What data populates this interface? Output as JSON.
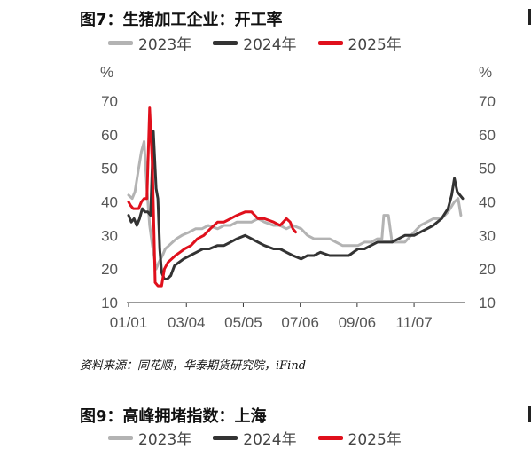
{
  "figure1": {
    "title": "图7：生猪加工企业：开工率",
    "source": "资料来源：同花顺，华泰期货研究院，iFind"
  },
  "figure2": {
    "title": "图9：高峰拥堵指数：上海",
    "legend": [
      "2023年",
      "2024年",
      "2025年"
    ]
  },
  "colors": {
    "s2023": "#b3b3b3",
    "s2024": "#333333",
    "s2025": "#e0101c"
  },
  "chart_data": {
    "type": "line",
    "title": "图7：生猪加工企业：开工率",
    "ylabel_left": "%",
    "ylabel_right": "%",
    "ylim": [
      10,
      70
    ],
    "yticks": [
      10,
      20,
      30,
      40,
      50,
      60,
      70
    ],
    "xlim": [
      "01/01",
      "12/31"
    ],
    "xticks": [
      "01/01",
      "03/04",
      "05/05",
      "07/06",
      "09/06",
      "11/07"
    ],
    "legend_position": "top",
    "grid": false,
    "series": [
      {
        "name": "2023年",
        "x": [
          "01/01",
          "01/05",
          "01/08",
          "01/12",
          "01/15",
          "01/18",
          "01/21",
          "01/24",
          "01/27",
          "01/31",
          "02/03",
          "02/07",
          "02/10",
          "02/14",
          "02/18",
          "02/22",
          "02/28",
          "03/07",
          "03/14",
          "03/21",
          "03/28",
          "04/07",
          "04/14",
          "04/21",
          "04/28",
          "05/07",
          "05/14",
          "05/21",
          "05/28",
          "06/07",
          "06/14",
          "06/21",
          "06/28",
          "07/07",
          "07/14",
          "07/21",
          "07/28",
          "08/07",
          "08/14",
          "08/21",
          "08/28",
          "09/07",
          "09/14",
          "09/21",
          "09/28",
          "10/03",
          "10/05",
          "10/10",
          "10/14",
          "10/21",
          "10/28",
          "11/07",
          "11/14",
          "11/21",
          "11/28",
          "12/07",
          "12/14",
          "12/21",
          "12/25",
          "12/28"
        ],
        "values": [
          42,
          41,
          43,
          50,
          55,
          58,
          44,
          33,
          27,
          20,
          22,
          24,
          26,
          27,
          28,
          29,
          30,
          31,
          32,
          32,
          33,
          32,
          33,
          33,
          34,
          34,
          34,
          35,
          34,
          33,
          33,
          32,
          33,
          32,
          30,
          29,
          29,
          29,
          28,
          27,
          27,
          27,
          28,
          28,
          29,
          29,
          36,
          36,
          28,
          28,
          28,
          31,
          33,
          34,
          35,
          35,
          37,
          40,
          41,
          36
        ]
      },
      {
        "name": "2024年",
        "x": [
          "01/01",
          "01/04",
          "01/07",
          "01/10",
          "01/13",
          "01/16",
          "01/19",
          "01/22",
          "01/25",
          "01/28",
          "01/31",
          "02/02",
          "02/04",
          "02/06",
          "02/09",
          "02/12",
          "02/16",
          "02/20",
          "02/25",
          "03/01",
          "03/08",
          "03/15",
          "03/22",
          "03/29",
          "04/07",
          "04/14",
          "04/21",
          "04/28",
          "05/07",
          "05/14",
          "05/21",
          "05/28",
          "06/07",
          "06/14",
          "06/21",
          "06/28",
          "07/07",
          "07/14",
          "07/21",
          "07/28",
          "08/07",
          "08/14",
          "08/21",
          "08/28",
          "09/07",
          "09/14",
          "09/21",
          "09/28",
          "10/07",
          "10/14",
          "10/21",
          "10/28",
          "11/07",
          "11/14",
          "11/21",
          "11/28",
          "12/07",
          "12/14",
          "12/18",
          "12/21",
          "12/24",
          "12/27",
          "12/30"
        ],
        "values": [
          36,
          34,
          35,
          33,
          35,
          38,
          37,
          37,
          36,
          61,
          44,
          41,
          26,
          19,
          17,
          17,
          18,
          21,
          22,
          23,
          24,
          25,
          26,
          26,
          27,
          27,
          28,
          29,
          30,
          29,
          28,
          27,
          26,
          26,
          25,
          24,
          23,
          24,
          24,
          25,
          24,
          24,
          24,
          24,
          26,
          26,
          27,
          28,
          28,
          28,
          29,
          30,
          30,
          31,
          32,
          33,
          35,
          38,
          42,
          47,
          43,
          42,
          41
        ]
      },
      {
        "name": "2025年",
        "x": [
          "01/01",
          "01/03",
          "01/06",
          "01/09",
          "01/12",
          "01/15",
          "01/18",
          "01/21",
          "01/24",
          "01/27",
          "01/30",
          "02/02",
          "02/04",
          "02/06",
          "02/09",
          "02/13",
          "02/17",
          "02/21",
          "02/26",
          "03/02",
          "03/09",
          "03/16",
          "03/23",
          "03/30",
          "04/07",
          "04/14",
          "04/21",
          "04/28",
          "05/07",
          "05/14",
          "05/21",
          "05/28",
          "06/07",
          "06/14",
          "06/21",
          "06/25",
          "06/28",
          "07/01"
        ],
        "values": [
          40,
          39,
          38,
          38,
          38,
          40,
          41,
          41,
          68,
          51,
          16,
          15,
          15,
          15,
          20,
          22,
          23,
          24,
          25,
          26,
          27,
          29,
          30,
          32,
          34,
          34,
          35,
          36,
          37,
          37,
          35,
          35,
          34,
          33,
          35,
          34,
          32,
          31
        ]
      }
    ]
  }
}
